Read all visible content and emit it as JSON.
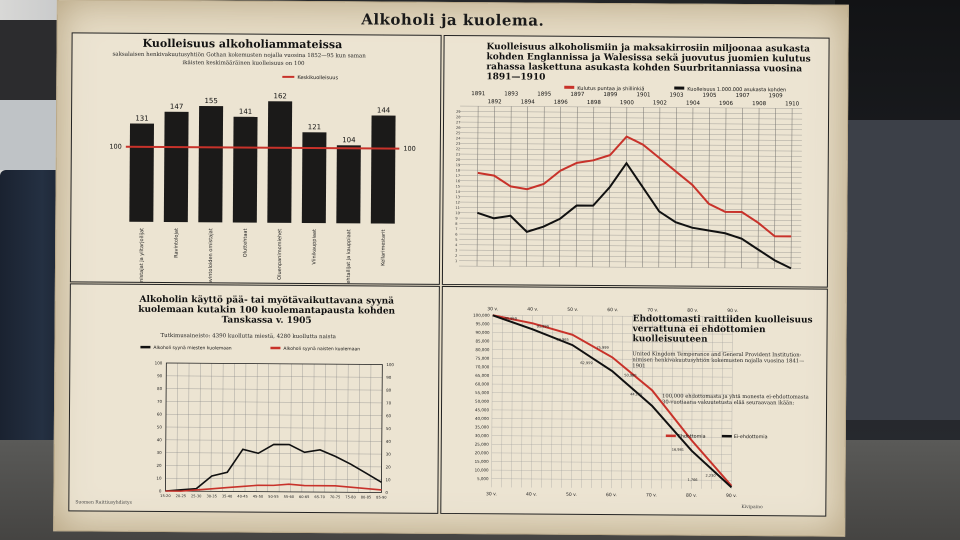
{
  "poster": {
    "title": "Alkoholi ja kuolema.",
    "footer_left": "Suomen Raittiusyhdistys",
    "footer_right": "Kivipaino"
  },
  "panels": [
    {
      "title": "Kuolleisuus alkoholiammateissa",
      "subtitle_1": "saksalaisen henkivakuutusyhtiön Gothan kokemusten nojalla vuosina 1852—95 kun saman",
      "subtitle_2": "ikäisten keskimääräinen kuolleisuus on 100",
      "legend_average": "Keskikuolleisuus"
    },
    {
      "title": "Kuolleisuus alkoholismiin ja maksakirrosiin miljoonaa asukasta kohden Englannissa ja Walesissa sekä juovutus juomien kulutus rahassa laskettuna asukasta kohden Suurbritanniassa vuosina 1891—1910",
      "legend_red": "Kulutus puntaa ja shillinkiä",
      "legend_black": "Kuolleisuus 1.000.000 asukasta kohden"
    },
    {
      "title": "Alkoholin käyttö pää- tai myötävaikuttavana syynä kuolemaan kutakin 100 kuolemantapausta kohden Tanskassa v. 1905",
      "subtitle": "Tutkimusaineisto: 4390 kuollutta miestä, 4280 kuollutta naista",
      "legend_black": "Alkoholi syynä miesten kuolemaan",
      "legend_red": "Alkoholi syynä naisten kuolemaan"
    },
    {
      "title": "Ehdottomasti raittiiden kuolleisuus verrattuna ei ehdottomien kuolleisuuteen",
      "subtitle": "United Kingdom Temperance and General Provident Institution-nimisen henkivakuutusyhtiön kokemusten nojalla vuosina 1841—1901",
      "note": "100,000 ehdottomasta ja yhtä monesta ei-ehdottomasta 30-vuotiaana vakuutetusta elää seuraavaan ikään:",
      "legend_red": "Ehdottomia",
      "legend_black": "Ei-ehdottomia"
    }
  ],
  "chart_data": [
    {
      "type": "bar",
      "title": "Kuolleisuus alkoholiammateissa",
      "categories": [
        "Hotellinomistajat ja ylitarjoilijat",
        "Ravintolojat",
        "Ravintoloiden omistajat",
        "Oluttehtaat",
        "Oluenpanimomiehet",
        "Viinikauppiaat",
        "Viinitehtailijat ja kauppiaat",
        "Kellarimestarit"
      ],
      "values": [
        131,
        147,
        155,
        141,
        162,
        121,
        104,
        144
      ],
      "reference_line": 100,
      "reference_label": "100"
    },
    {
      "type": "line",
      "title": "Kuolleisuus alkoholismiin ja maksakirrosiin",
      "x": [
        "1891",
        "1892",
        "1893",
        "1894",
        "1895",
        "1896",
        "1897",
        "1898",
        "1899",
        "1900",
        "1901",
        "1902",
        "1903",
        "1904",
        "1905",
        "1906",
        "1907",
        "1908",
        "1909",
        "1910"
      ],
      "series": [
        {
          "name": "Kulutus puntaa ja shillinkiä",
          "color": "#c8322a",
          "values": [
            17.5,
            17,
            15,
            14.5,
            15.5,
            18,
            19.5,
            20,
            21,
            24.5,
            23,
            20.5,
            18,
            15.5,
            12,
            10.5,
            10.5,
            8.5,
            6,
            6
          ]
        },
        {
          "name": "Kuolleisuus 1.000.000 asukasta kohden",
          "color": "#111111",
          "values": [
            10,
            9,
            9.5,
            6.5,
            7.5,
            9,
            11.5,
            11.5,
            15,
            19.5,
            15,
            10.5,
            8.5,
            7.5,
            7,
            6.5,
            5.5,
            3.5,
            1.5,
            0
          ]
        }
      ],
      "y_ticks_left": [
        "1",
        "2",
        "3",
        "4",
        "5",
        "6",
        "7",
        "8",
        "9",
        "10",
        "11",
        "12",
        "13",
        "14",
        "15",
        "16",
        "17",
        "18",
        "19",
        "20",
        "21",
        "22",
        "23",
        "24",
        "25",
        "26",
        "27",
        "28",
        "29"
      ]
    },
    {
      "type": "line",
      "title": "Alkoholin käyttö pää- tai myötävaikuttavana syynä kuolemaan",
      "x": [
        "15-20",
        "20-25",
        "25-30",
        "30-35",
        "35-40",
        "40-45",
        "45-50",
        "50-55",
        "55-60",
        "60-65",
        "65-70",
        "70-75",
        "75-80",
        "80-85",
        "85-90"
      ],
      "ylim": [
        0,
        100
      ],
      "y_ticks": [
        0,
        10,
        20,
        30,
        40,
        50,
        60,
        70,
        80,
        90,
        100
      ],
      "series": [
        {
          "name": "Alkoholi syynä miesten kuolemaan",
          "color": "#111111",
          "values": [
            0,
            1,
            2,
            12,
            15,
            33,
            30,
            37,
            37,
            31,
            33,
            28,
            22,
            15,
            8
          ]
        },
        {
          "name": "Alkoholi syynä naisten kuolemaan",
          "color": "#c8322a",
          "values": [
            0,
            0,
            1,
            2,
            3,
            4,
            5,
            5,
            6,
            5,
            5,
            5,
            4,
            3,
            2
          ]
        }
      ]
    },
    {
      "type": "line",
      "title": "Ehdottomasti raittiiden kuolleisuus",
      "x": [
        "30 v.",
        "40 v.",
        "50 v.",
        "60 v.",
        "70 v.",
        "80 v.",
        "90 v."
      ],
      "y_ticks": [
        "100,000",
        "95,000",
        "90,000",
        "85,000",
        "80,000",
        "75,000",
        "70,000",
        "65,000",
        "60,000",
        "55,000",
        "50,000",
        "45,000",
        "40,000",
        "35,000",
        "30,000",
        "25,000",
        "20,000",
        "15,000",
        "10,000",
        "5,000"
      ],
      "series": [
        {
          "name": "Ehdottomia",
          "color": "#c8322a",
          "values": [
            100000,
            95500,
            89000,
            76000,
            57000,
            28000,
            1800
          ]
        },
        {
          "name": "Ei-ehdottomia",
          "color": "#111111",
          "values": [
            100000,
            92000,
            83000,
            68000,
            48000,
            22000,
            900
          ]
        }
      ],
      "data_labels": [
        "95,959",
        "91,999",
        "82,965",
        "75,999",
        "62,959",
        "50,980",
        "44,135",
        "16,981",
        "1,766",
        "2,230"
      ]
    }
  ]
}
